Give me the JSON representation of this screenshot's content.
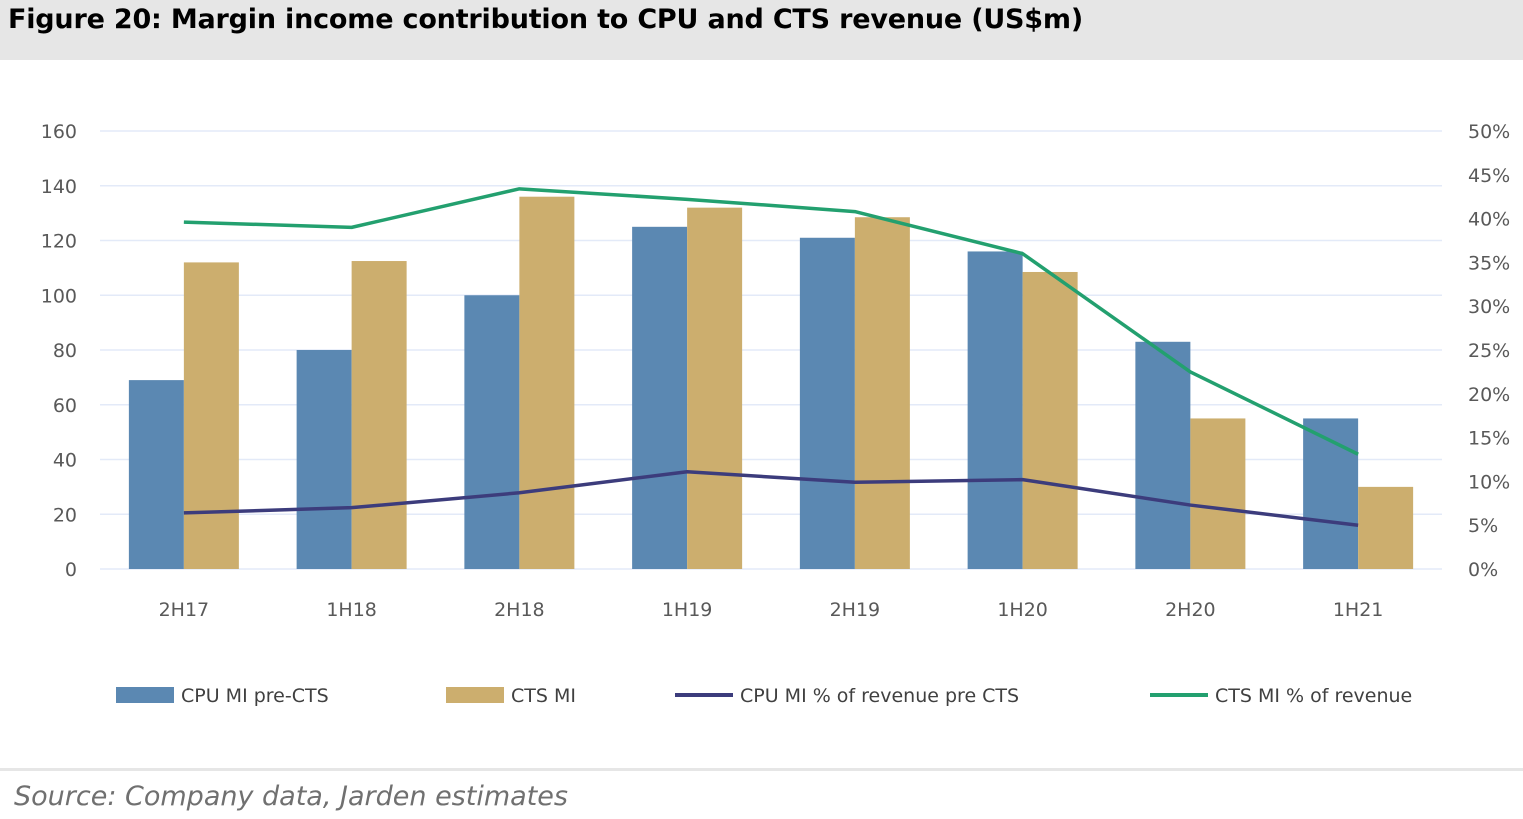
{
  "figure": {
    "title": "Figure 20:  Margin income contribution to CPU and CTS revenue (US$m)",
    "source": "Source:  Company data, Jarden estimates"
  },
  "colors": {
    "cpu_bar": "#5b88b2",
    "cts_bar": "#ccae6e",
    "cpu_line": "#3c3c7c",
    "cts_line": "#23a06f",
    "grid": "#e3eaf8",
    "title_bg": "#e6e6e6"
  },
  "chart_data": {
    "type": "bar",
    "title": "Margin income contribution to CPU and CTS revenue (US$m)",
    "xlabel": "",
    "ylabel": "",
    "categories": [
      "2H17",
      "1H18",
      "2H18",
      "1H19",
      "2H19",
      "1H20",
      "2H20",
      "1H21"
    ],
    "ylim": [
      0,
      160
    ],
    "yticks": [
      "0",
      "20",
      "40",
      "60",
      "80",
      "100",
      "120",
      "140",
      "160"
    ],
    "y2lim": [
      0,
      50
    ],
    "y2ticks": [
      "0%",
      "5%",
      "10%",
      "15%",
      "20%",
      "25%",
      "30%",
      "35%",
      "40%",
      "45%",
      "50%"
    ],
    "grid": true,
    "legend_position": "bottom",
    "series": [
      {
        "name": "CPU MI pre-CTS",
        "type": "bar",
        "axis": "left",
        "values": [
          69,
          80,
          100,
          125,
          121,
          116,
          83,
          55
        ]
      },
      {
        "name": "CTS MI",
        "type": "bar",
        "axis": "left",
        "values": [
          112,
          112.5,
          136,
          132,
          128.5,
          108.5,
          55,
          30
        ]
      },
      {
        "name": "CPU MI % of revenue pre CTS",
        "type": "line",
        "axis": "right",
        "values": [
          6.4,
          7.0,
          8.7,
          11.1,
          9.9,
          10.2,
          7.3,
          5.0
        ]
      },
      {
        "name": "CTS MI % of revenue",
        "type": "line",
        "axis": "right",
        "values": [
          39.6,
          39.0,
          43.4,
          42.2,
          40.8,
          36.0,
          22.5,
          13.1
        ]
      }
    ]
  }
}
